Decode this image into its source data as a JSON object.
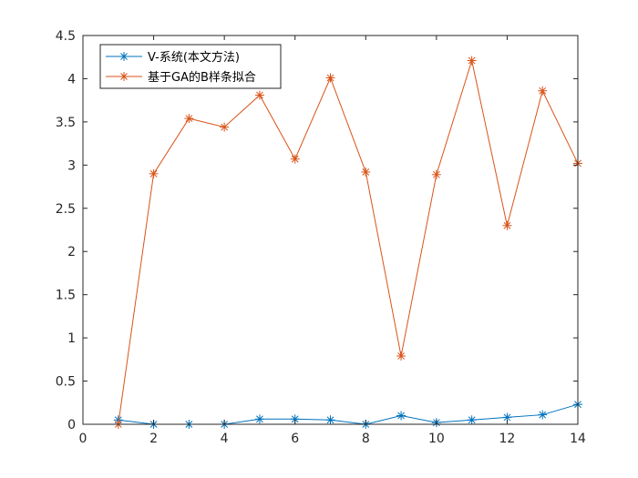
{
  "chart_data": {
    "type": "line",
    "title": "",
    "xlabel": "",
    "ylabel": "",
    "xlim": [
      0,
      14
    ],
    "ylim": [
      0,
      4.5
    ],
    "xticks": [
      0,
      2,
      4,
      6,
      8,
      10,
      12,
      14
    ],
    "yticks": [
      0,
      0.5,
      1,
      1.5,
      2,
      2.5,
      3,
      3.5,
      4,
      4.5
    ],
    "xtick_labels": [
      "0",
      "2",
      "4",
      "6",
      "8",
      "10",
      "12",
      "14"
    ],
    "ytick_labels": [
      "0",
      "0.5",
      "1",
      "1.5",
      "2",
      "2.5",
      "3",
      "3.5",
      "4",
      "4.5"
    ],
    "grid": false,
    "legend_position": "top-left",
    "x": [
      1,
      2,
      3,
      4,
      5,
      6,
      7,
      8,
      9,
      10,
      11,
      12,
      13,
      14
    ],
    "series": [
      {
        "name": "V-系统(本文方法)",
        "color": "#0072BD",
        "marker": "asterisk",
        "values": [
          0.05,
          0.0,
          0.0,
          0.0,
          0.06,
          0.06,
          0.05,
          0.0,
          0.1,
          0.02,
          0.05,
          0.08,
          0.11,
          0.23
        ]
      },
      {
        "name": "基于GA的B样条拟合",
        "color": "#D95319",
        "marker": "asterisk",
        "values": [
          0.0,
          2.9,
          3.54,
          3.44,
          3.81,
          3.07,
          4.01,
          2.92,
          0.79,
          2.89,
          4.21,
          2.3,
          3.86,
          3.02
        ]
      }
    ]
  }
}
